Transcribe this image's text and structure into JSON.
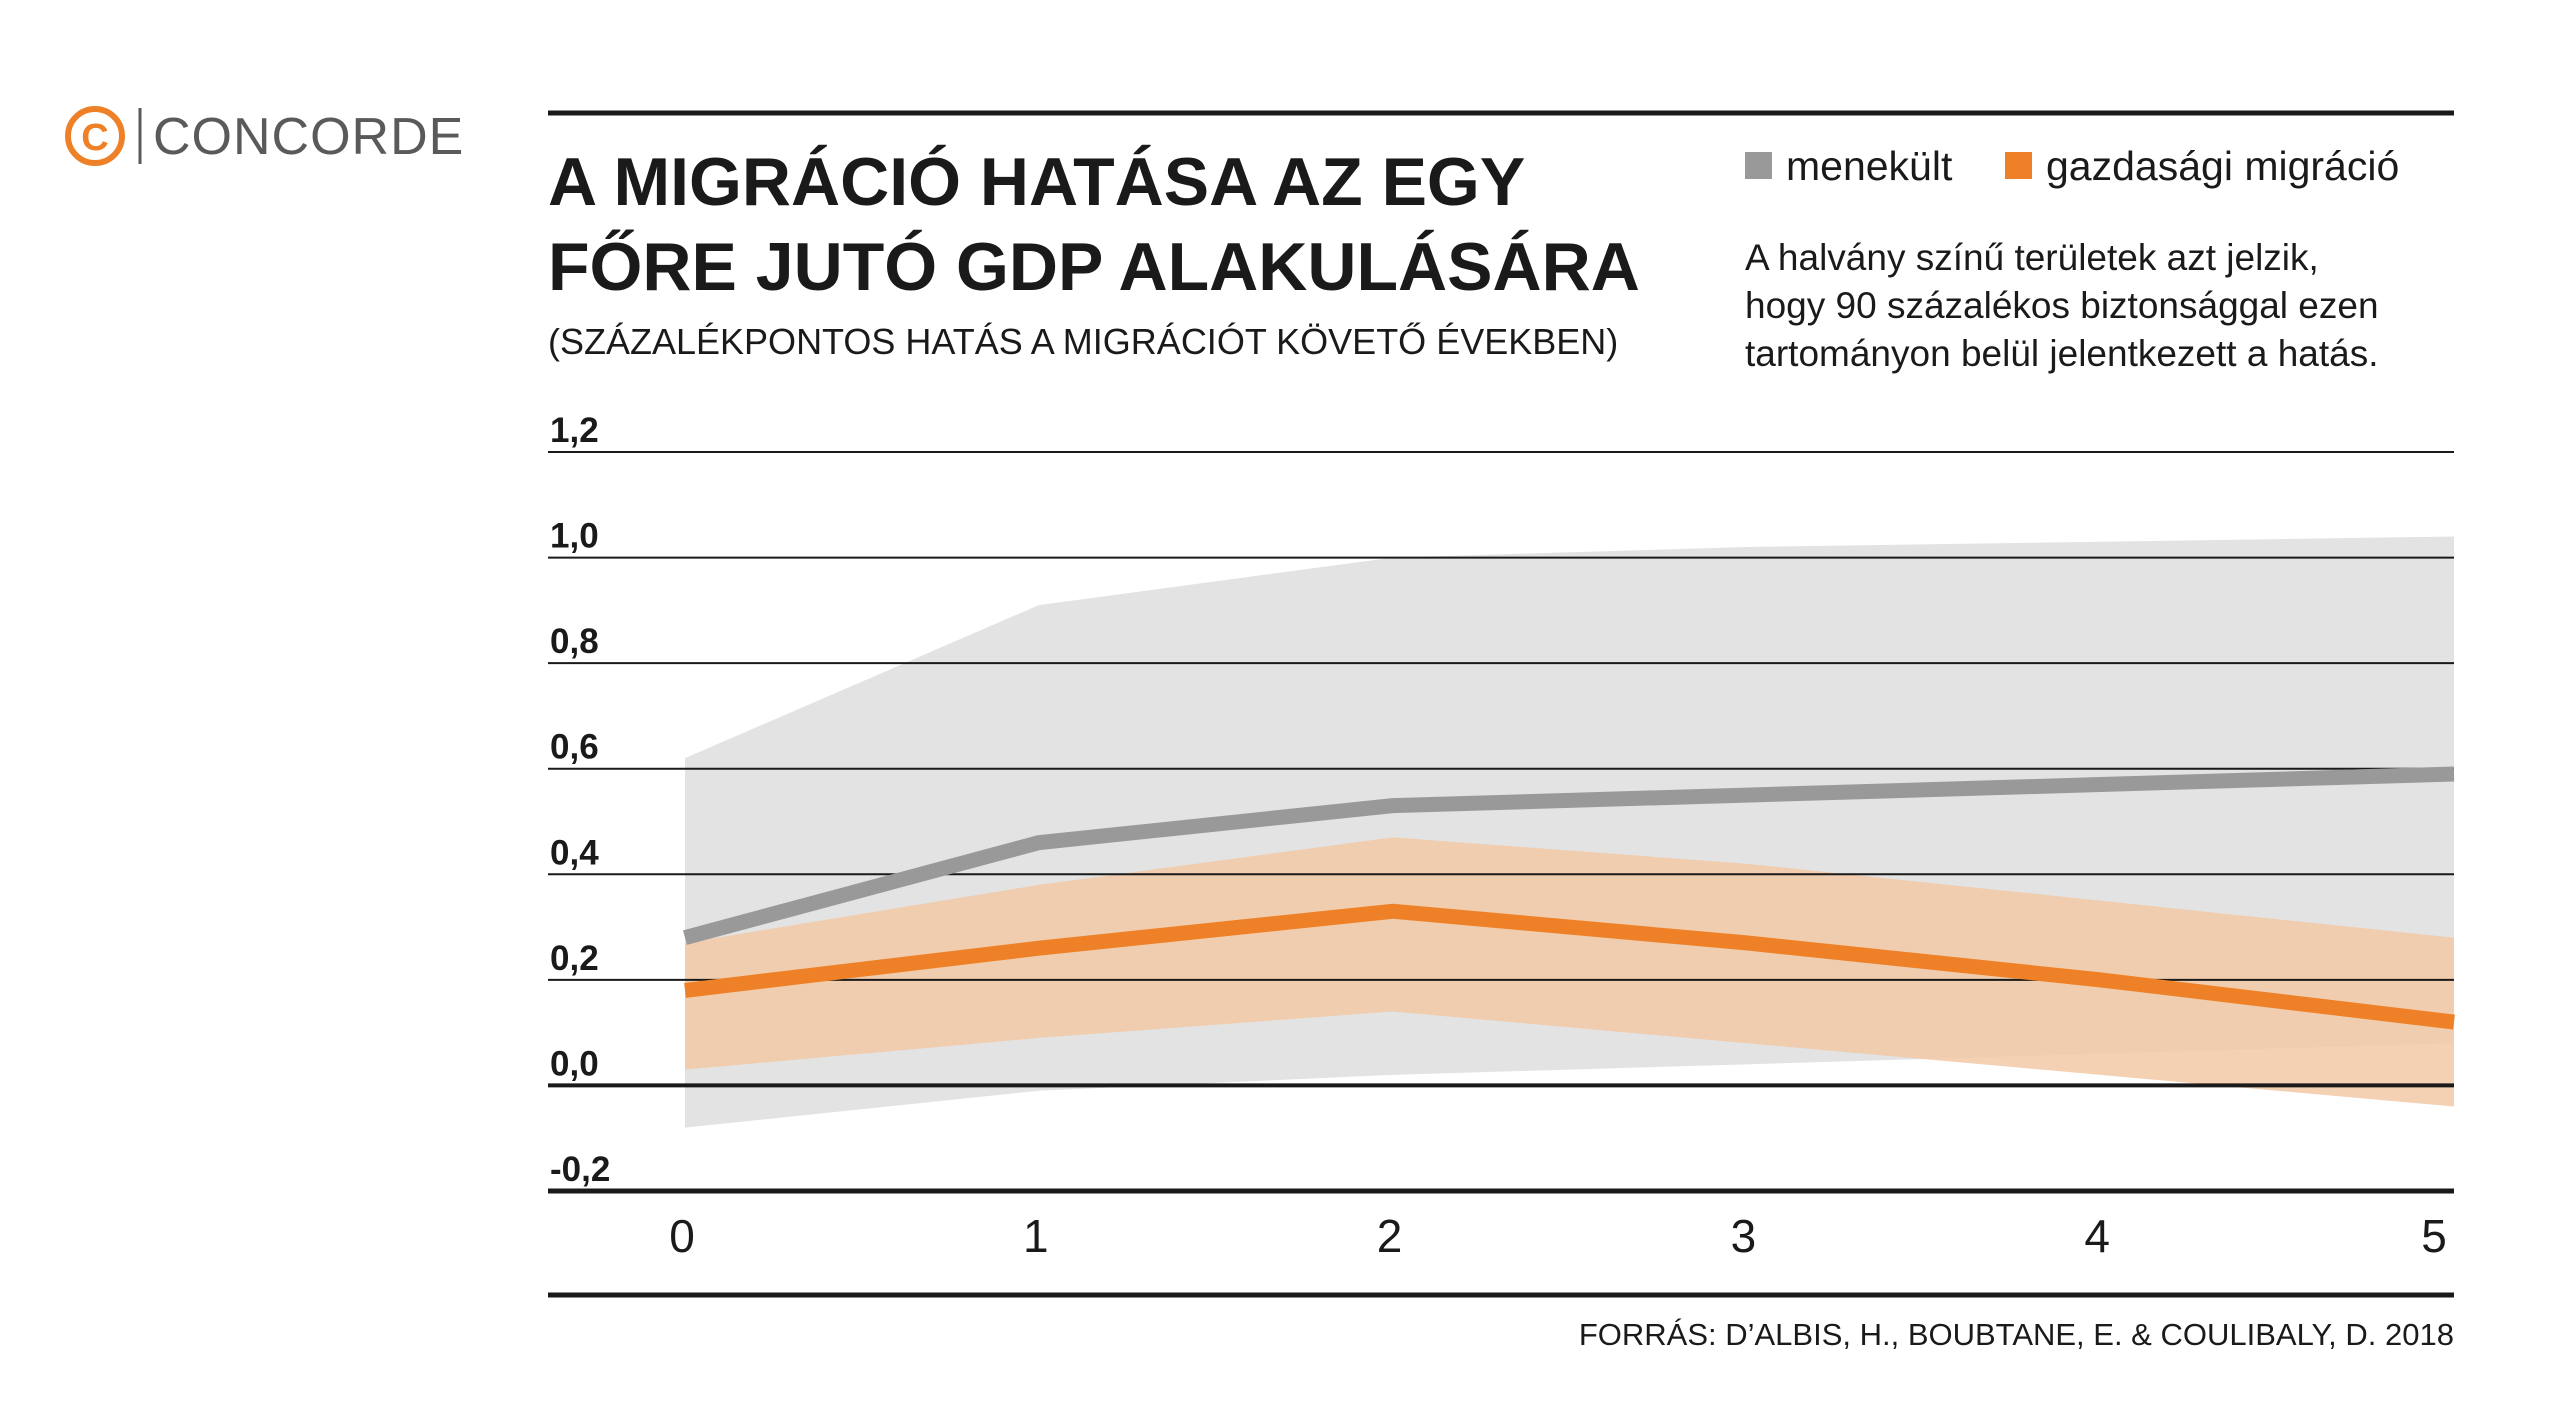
{
  "logo": {
    "text": "CONCORDE",
    "icon": "copyright-c-icon",
    "accent": "#ee8127",
    "text_color": "#5a5a5a"
  },
  "colors": {
    "refugee": "#999999",
    "refugee_band": "#e3e3e3",
    "economic": "#ee8127",
    "economic_band": "#f2c9a6",
    "gridline": "#1a1a1a"
  },
  "chart_data": {
    "type": "line",
    "title": "A MIGRÁCIÓ HATÁSA AZ EGY FŐRE JUTÓ GDP ALAKULÁSÁRA",
    "title_lines": [
      "A MIGRÁCIÓ HATÁSA AZ EGY",
      "FŐRE JUTÓ GDP ALAKULÁSÁRA"
    ],
    "subtitle": "(SZÁZALÉKPONTOS HATÁS A MIGRÁCIÓT KÖVETŐ ÉVEKBEN)",
    "note_lines": [
      "A halvány színű területek azt jelzik,",
      "hogy 90 százalékos biztonsággal ezen",
      "tartományon belül jelentkezett a hatás."
    ],
    "x": [
      0,
      1,
      2,
      3,
      4,
      5
    ],
    "x_tick_labels": [
      "0",
      "1",
      "2",
      "3",
      "4",
      "5"
    ],
    "y_tick_labels": [
      "1,2",
      "1,0",
      "0,8",
      "0,6",
      "0,4",
      "0,2",
      "0,0",
      "-0,2"
    ],
    "y_ticks": [
      1.2,
      1.0,
      0.8,
      0.6,
      0.4,
      0.2,
      0.0,
      -0.2
    ],
    "ylim": [
      -0.2,
      1.2
    ],
    "xlim": [
      0,
      5
    ],
    "grid": true,
    "legend_position": "top-right",
    "series": [
      {
        "name": "menekült",
        "color": "#999999",
        "values": [
          0.28,
          0.46,
          0.53,
          0.55,
          0.57,
          0.59
        ],
        "ci_upper": [
          0.62,
          0.91,
          1.0,
          1.02,
          1.03,
          1.04
        ],
        "ci_lower": [
          -0.08,
          -0.01,
          0.02,
          0.04,
          0.06,
          0.08
        ]
      },
      {
        "name": "gazdasági migráció",
        "color": "#ee8127",
        "values": [
          0.18,
          0.26,
          0.33,
          0.27,
          0.2,
          0.12
        ],
        "ci_upper": [
          0.27,
          0.38,
          0.47,
          0.42,
          0.35,
          0.28
        ],
        "ci_lower": [
          0.03,
          0.09,
          0.14,
          0.08,
          0.02,
          -0.04
        ]
      }
    ],
    "source": "FORRÁS: D’ALBIS, H., BOUBTANE, E. & COULIBALY, D. 2018"
  }
}
